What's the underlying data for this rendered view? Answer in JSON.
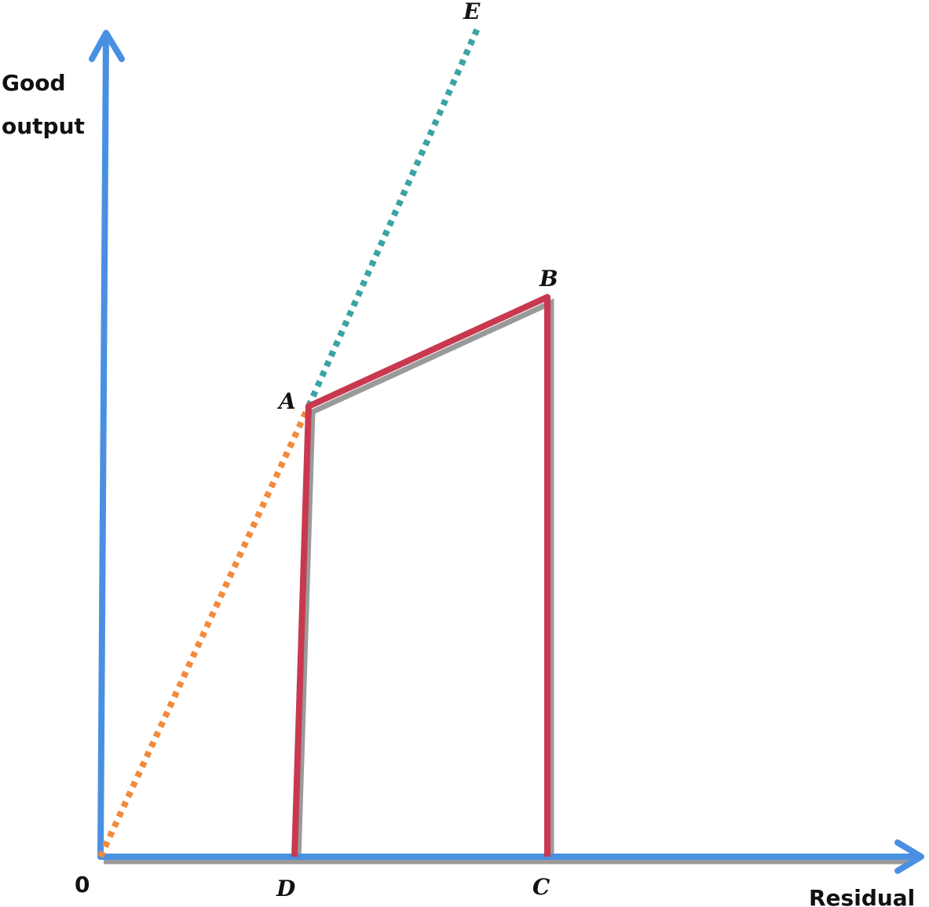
{
  "axes": {
    "y_label": [
      "Good",
      "output"
    ],
    "x_label": "Residual",
    "origin": "0"
  },
  "points": [
    {
      "label": "A"
    },
    {
      "label": "B"
    },
    {
      "label": "C"
    },
    {
      "label": "D"
    },
    {
      "label": "E"
    }
  ]
}
